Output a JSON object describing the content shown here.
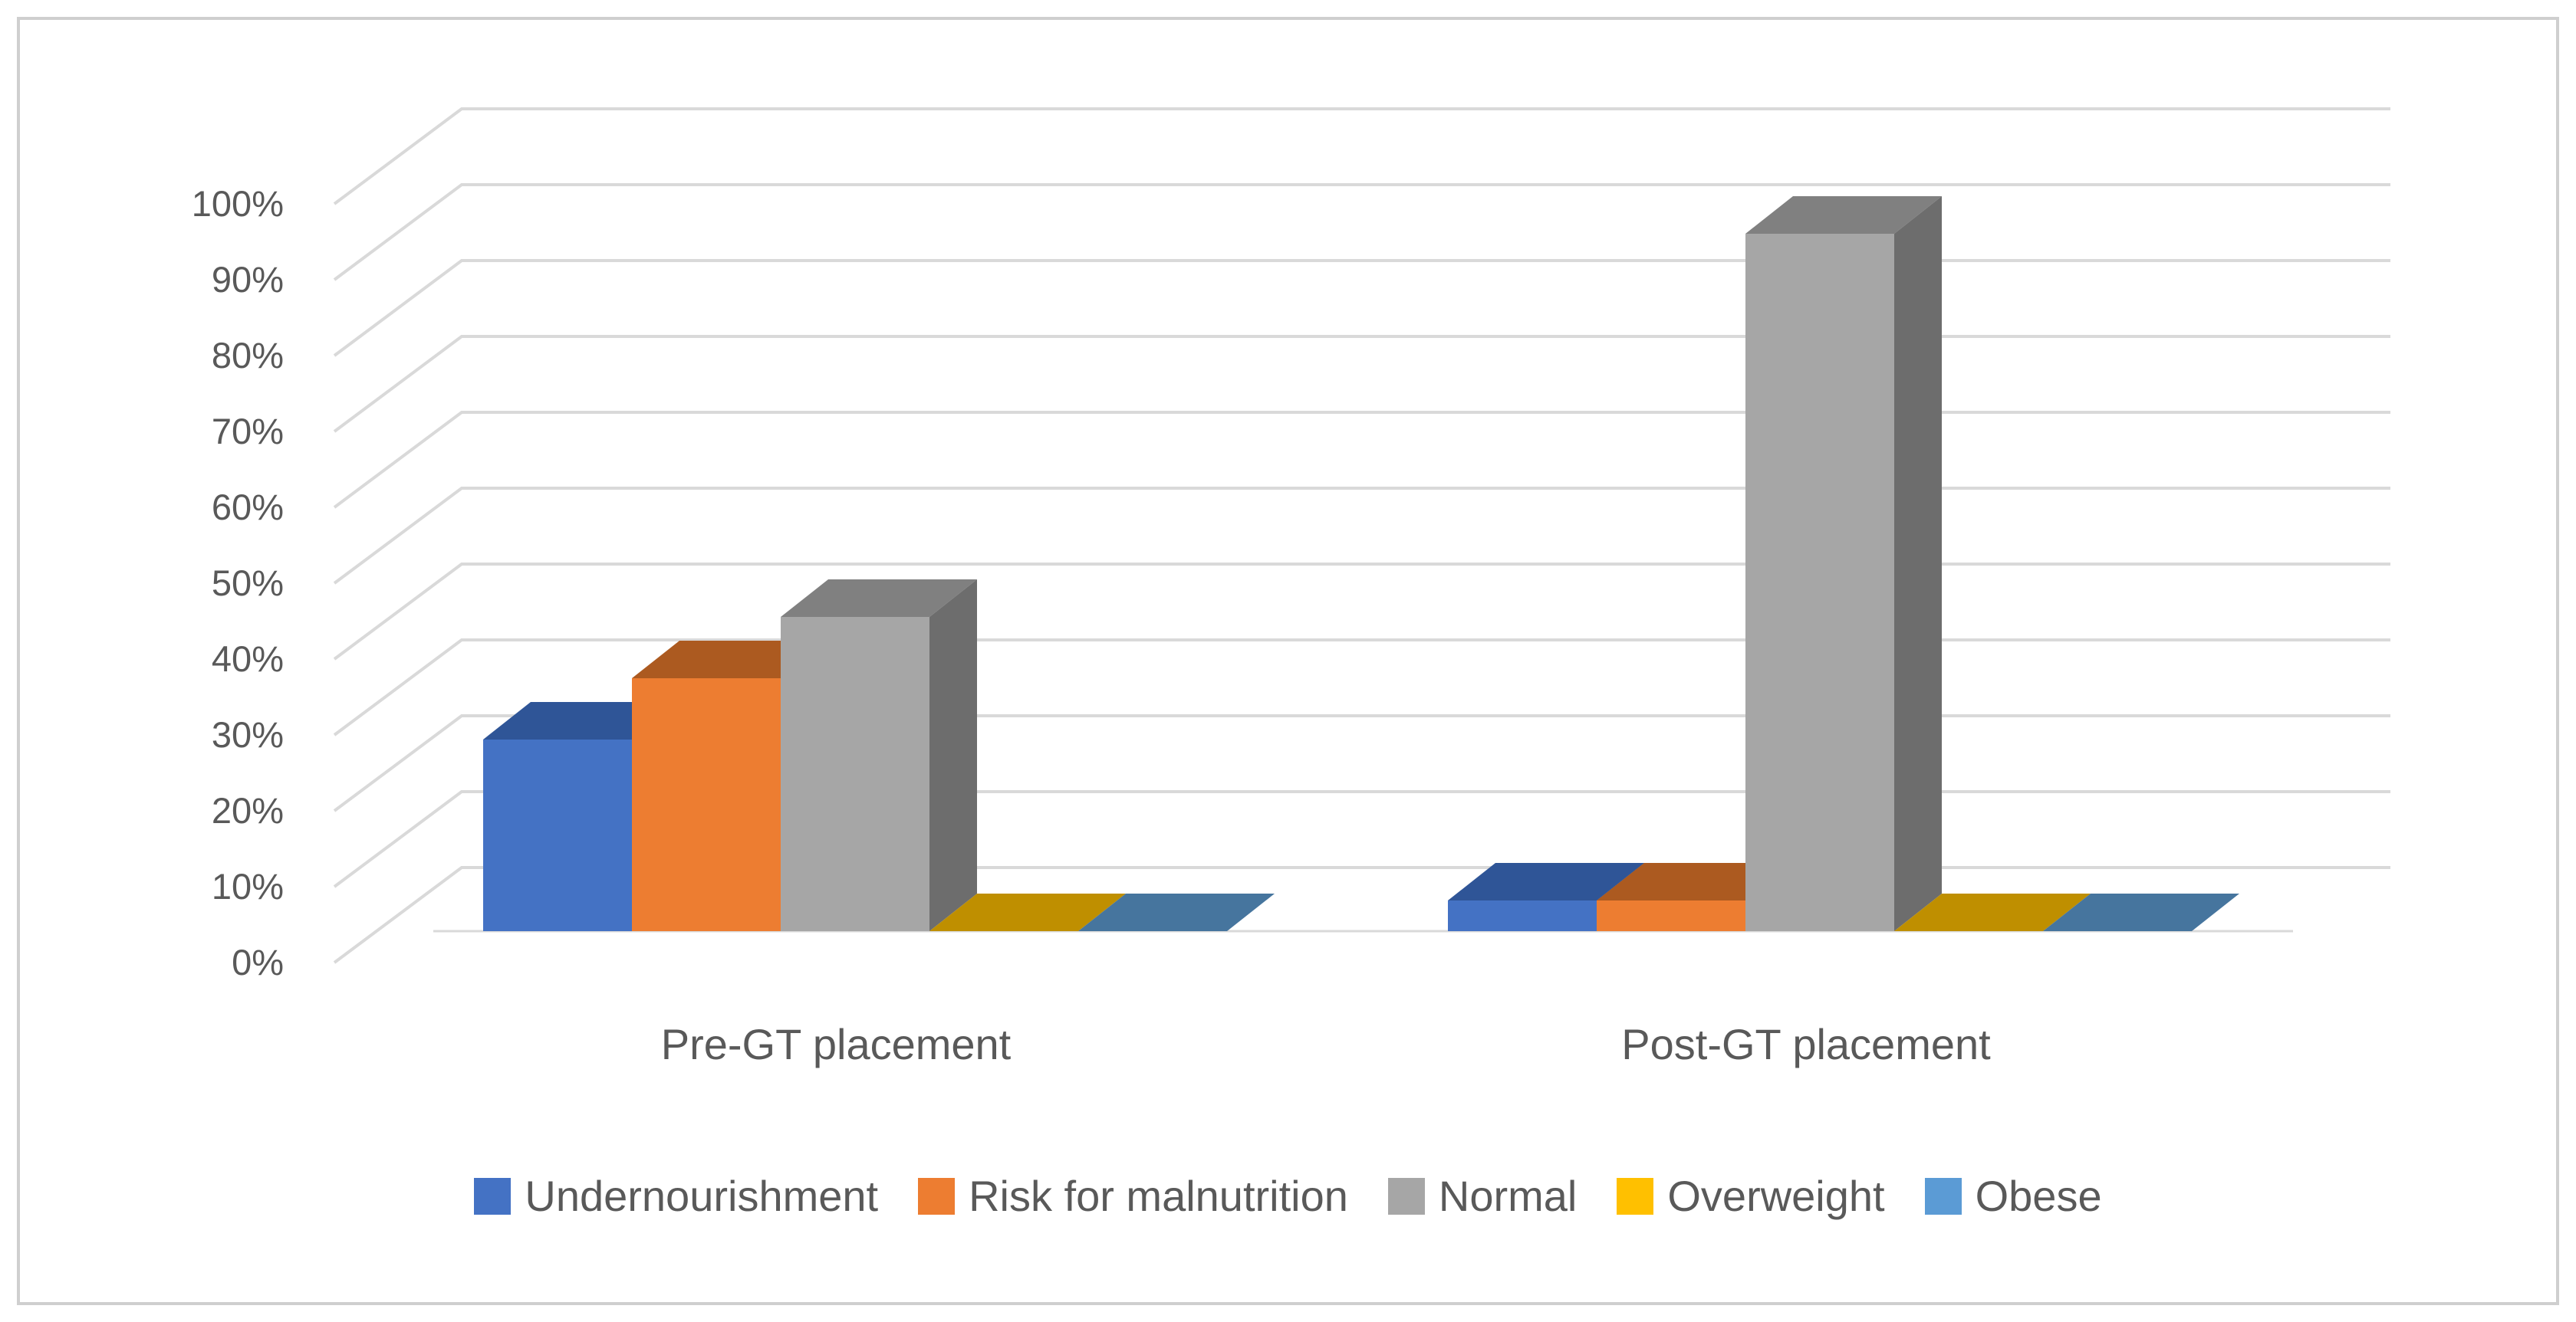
{
  "figure": {
    "background_color": "#FFFFFF",
    "border_color": "#CFCFCF"
  },
  "chart_data": {
    "type": "bar",
    "subtype": "3d-clustered-column",
    "title": "",
    "xlabel": "",
    "ylabel": "",
    "categories": [
      "Pre-GT placement",
      "Post-GT placement"
    ],
    "series": [
      {
        "name": "Undernourishment",
        "color": "#4472C4",
        "color_top": "#2F5597",
        "color_side": "#2A4A82",
        "values": [
          25,
          4
        ]
      },
      {
        "name": "Risk for malnutrition",
        "color": "#ED7D31",
        "color_top": "#AC5A20",
        "color_side": "#9C501D",
        "values": [
          33,
          4
        ]
      },
      {
        "name": "Normal",
        "color": "#A6A6A6",
        "color_top": "#808080",
        "color_side": "#6D6D6D",
        "values": [
          41,
          91
        ]
      },
      {
        "name": "Overweight",
        "color": "#FFC000",
        "color_top": "#BF8F00",
        "color_side": "#A57C00",
        "values": [
          0,
          0
        ]
      },
      {
        "name": "Obese",
        "color": "#5B9BD5",
        "color_top": "#46759E",
        "color_side": "#3D6588",
        "values": [
          0,
          0
        ]
      }
    ],
    "y_ticks": [
      "0%",
      "10%",
      "20%",
      "30%",
      "40%",
      "50%",
      "60%",
      "70%",
      "80%",
      "90%",
      "100%"
    ],
    "ylim": [
      0,
      100
    ],
    "grid": true,
    "gridline_color": "#D9D9D9",
    "text_color": "#595959",
    "legend_position": "bottom"
  }
}
